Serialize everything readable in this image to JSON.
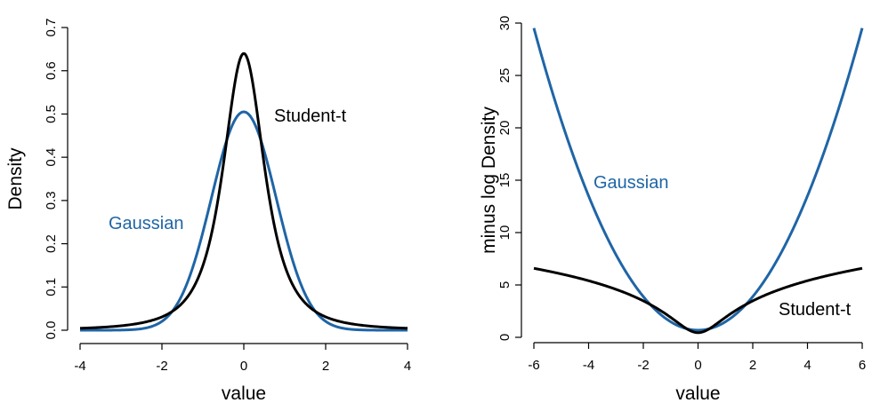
{
  "chart_data": [
    {
      "type": "line",
      "title": "",
      "xlabel": "value",
      "ylabel": "Density",
      "xlim": [
        -4,
        4
      ],
      "ylim": [
        0,
        0.7
      ],
      "xticks": [
        "-4",
        "-2",
        "0",
        "2",
        "4"
      ],
      "yticks": [
        "0.0",
        "0.1",
        "0.2",
        "0.3",
        "0.4",
        "0.5",
        "0.6",
        "0.7"
      ],
      "xtick_values": [
        -4,
        -2,
        0,
        2,
        4
      ],
      "ytick_values": [
        0,
        0.1,
        0.2,
        0.3,
        0.4,
        0.5,
        0.6,
        0.7
      ],
      "grid": false,
      "series": [
        {
          "name": "Gaussian",
          "label": "Gaussian",
          "color": "#1f65a6",
          "distribution": "normal",
          "mean": 0,
          "sd": 0.79,
          "transform": "density",
          "x_range": [
            -4,
            4
          ],
          "peak": 0.505
        },
        {
          "name": "Student-t",
          "label": "Student-t",
          "color": "#000000",
          "distribution": "student-t",
          "df": 2,
          "location": 0,
          "scale": 0.5525,
          "transform": "density",
          "x_range": [
            -4,
            4
          ],
          "peak": 0.64
        }
      ]
    },
    {
      "type": "line",
      "title": "",
      "xlabel": "value",
      "ylabel": "minus log Density",
      "xlim": [
        -6,
        6
      ],
      "ylim": [
        0,
        30
      ],
      "xticks": [
        "-6",
        "-4",
        "-2",
        "0",
        "2",
        "4",
        "6"
      ],
      "yticks": [
        "0",
        "5",
        "10",
        "15",
        "20",
        "25",
        "30"
      ],
      "xtick_values": [
        -6,
        -4,
        -2,
        0,
        2,
        4,
        6
      ],
      "ytick_values": [
        0,
        5,
        10,
        15,
        20,
        25,
        30
      ],
      "grid": false,
      "series": [
        {
          "name": "Gaussian",
          "label": "Gaussian",
          "color": "#1f65a6",
          "distribution": "normal",
          "mean": 0,
          "sd": 0.79,
          "transform": "minus-log-density",
          "x_range": [
            -6,
            6
          ],
          "value_at_6": 29.5
        },
        {
          "name": "Student-t",
          "label": "Student-t",
          "color": "#000000",
          "distribution": "student-t",
          "df": 2,
          "location": 0,
          "scale": 0.5525,
          "transform": "minus-log-density",
          "x_range": [
            -6,
            6
          ],
          "value_at_6": 6.6
        }
      ]
    }
  ]
}
